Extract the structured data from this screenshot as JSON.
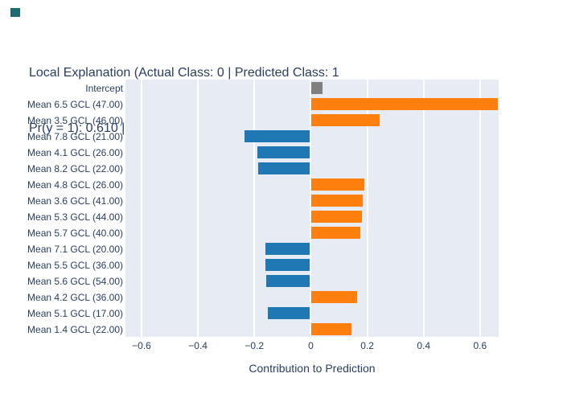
{
  "page": {
    "background": "#ffffff"
  },
  "corner_marker": {
    "color": "#1c6b73"
  },
  "title": {
    "line1": "Local Explanation (Actual Class: 0 | Predicted Class: 1",
    "line2": "Pr(y = 1): 0.610 | Pr(y = 0): 0.390)",
    "color": "#2a3f5f"
  },
  "chart_data": {
    "type": "bar",
    "orientation": "horizontal",
    "title": "Local Explanation (Actual Class: 0 | Predicted Class: 1 Pr(y = 1): 0.610 | Pr(y = 0): 0.390)",
    "xlabel": "Contribution to Prediction",
    "ylabel": "",
    "legend": false,
    "grid": true,
    "plot_bg": "#e7ebf4",
    "grid_color": "#ffffff",
    "text_color": "#2a3f5f",
    "xlim": [
      -0.657,
      0.666
    ],
    "xticks": {
      "values": [
        -0.6,
        -0.4,
        -0.2,
        0,
        0.2,
        0.4,
        0.6
      ],
      "labels": [
        "−0.6",
        "−0.4",
        "−0.2",
        "0",
        "0.2",
        "0.4",
        "0.6"
      ]
    },
    "categories": [
      "Intercept",
      "Mean 6.5 GCL (47.00)",
      "Mean 3.5 GCL (46.00)",
      "Mean 7.8 GCL (21.00)",
      "Mean 4.1 GCL (26.00)",
      "Mean 8.2 GCL (22.00)",
      "Mean 4.8 GCL (26.00)",
      "Mean 3.6 GCL (41.00)",
      "Mean 5.3 GCL (44.00)",
      "Mean 5.7 GCL (40.00)",
      "Mean 7.1 GCL (20.00)",
      "Mean 5.5 GCL (36.00)",
      "Mean 5.6 GCL (54.00)",
      "Mean 4.2 GCL (36.00)",
      "Mean 5.1 GCL (17.00)",
      "Mean 1.4 GCL (22.00)"
    ],
    "values": [
      0.043,
      0.662,
      0.245,
      -0.235,
      -0.188,
      -0.187,
      0.19,
      0.185,
      0.18,
      0.175,
      -0.162,
      -0.16,
      -0.159,
      0.163,
      -0.151,
      0.145
    ],
    "colors": [
      "#7f7f7f",
      "#ff7f0e",
      "#ff7f0e",
      "#1f77b4",
      "#1f77b4",
      "#1f77b4",
      "#ff7f0e",
      "#ff7f0e",
      "#ff7f0e",
      "#ff7f0e",
      "#1f77b4",
      "#1f77b4",
      "#1f77b4",
      "#ff7f0e",
      "#1f77b4",
      "#ff7f0e"
    ],
    "color_legend": {
      "intercept": "#7f7f7f",
      "positive": "#ff7f0e",
      "negative": "#1f77b4"
    }
  }
}
